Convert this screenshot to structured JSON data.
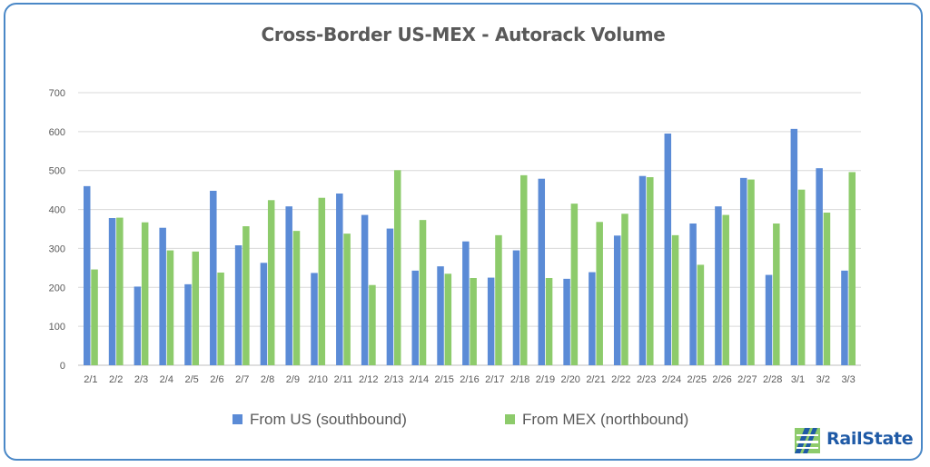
{
  "page": {
    "title": "Cross-Border US-MEX - Autorack Volume",
    "brand": "RailState",
    "brand_icon": "railstate-logo-icon"
  },
  "colors": {
    "series_us": "#5b8bd6",
    "series_mex": "#8dcb6b",
    "border": "#4a88c7",
    "grid": "#d9d9d9",
    "text": "#595959"
  },
  "chart_data": {
    "type": "bar",
    "title": "Cross-Border US-MEX - Autorack Volume",
    "xlabel": "",
    "ylabel": "",
    "ylim": [
      0,
      700
    ],
    "yticks": [
      0,
      100,
      200,
      300,
      400,
      500,
      600,
      700
    ],
    "grid": true,
    "legend_position": "bottom",
    "categories": [
      "2/1",
      "2/2",
      "2/3",
      "2/4",
      "2/5",
      "2/6",
      "2/7",
      "2/8",
      "2/9",
      "2/10",
      "2/11",
      "2/12",
      "2/13",
      "2/14",
      "2/15",
      "2/16",
      "2/17",
      "2/18",
      "2/19",
      "2/20",
      "2/21",
      "2/22",
      "2/23",
      "2/24",
      "2/25",
      "2/26",
      "2/27",
      "2/28",
      "3/1",
      "3/2",
      "3/3"
    ],
    "series": [
      {
        "name": "From US (southbound)",
        "values": [
          460,
          378,
          202,
          353,
          208,
          448,
          308,
          263,
          408,
          237,
          441,
          386,
          351,
          243,
          254,
          318,
          225,
          295,
          479,
          222,
          239,
          333,
          486,
          595,
          364,
          408,
          481,
          232,
          607,
          506,
          243
        ]
      },
      {
        "name": "From MEX (northbound)",
        "values": [
          246,
          379,
          367,
          295,
          292,
          238,
          357,
          424,
          345,
          430,
          338,
          206,
          501,
          373,
          235,
          224,
          334,
          488,
          224,
          415,
          368,
          389,
          483,
          334,
          258,
          386,
          477,
          364,
          451,
          392,
          496
        ]
      }
    ]
  }
}
